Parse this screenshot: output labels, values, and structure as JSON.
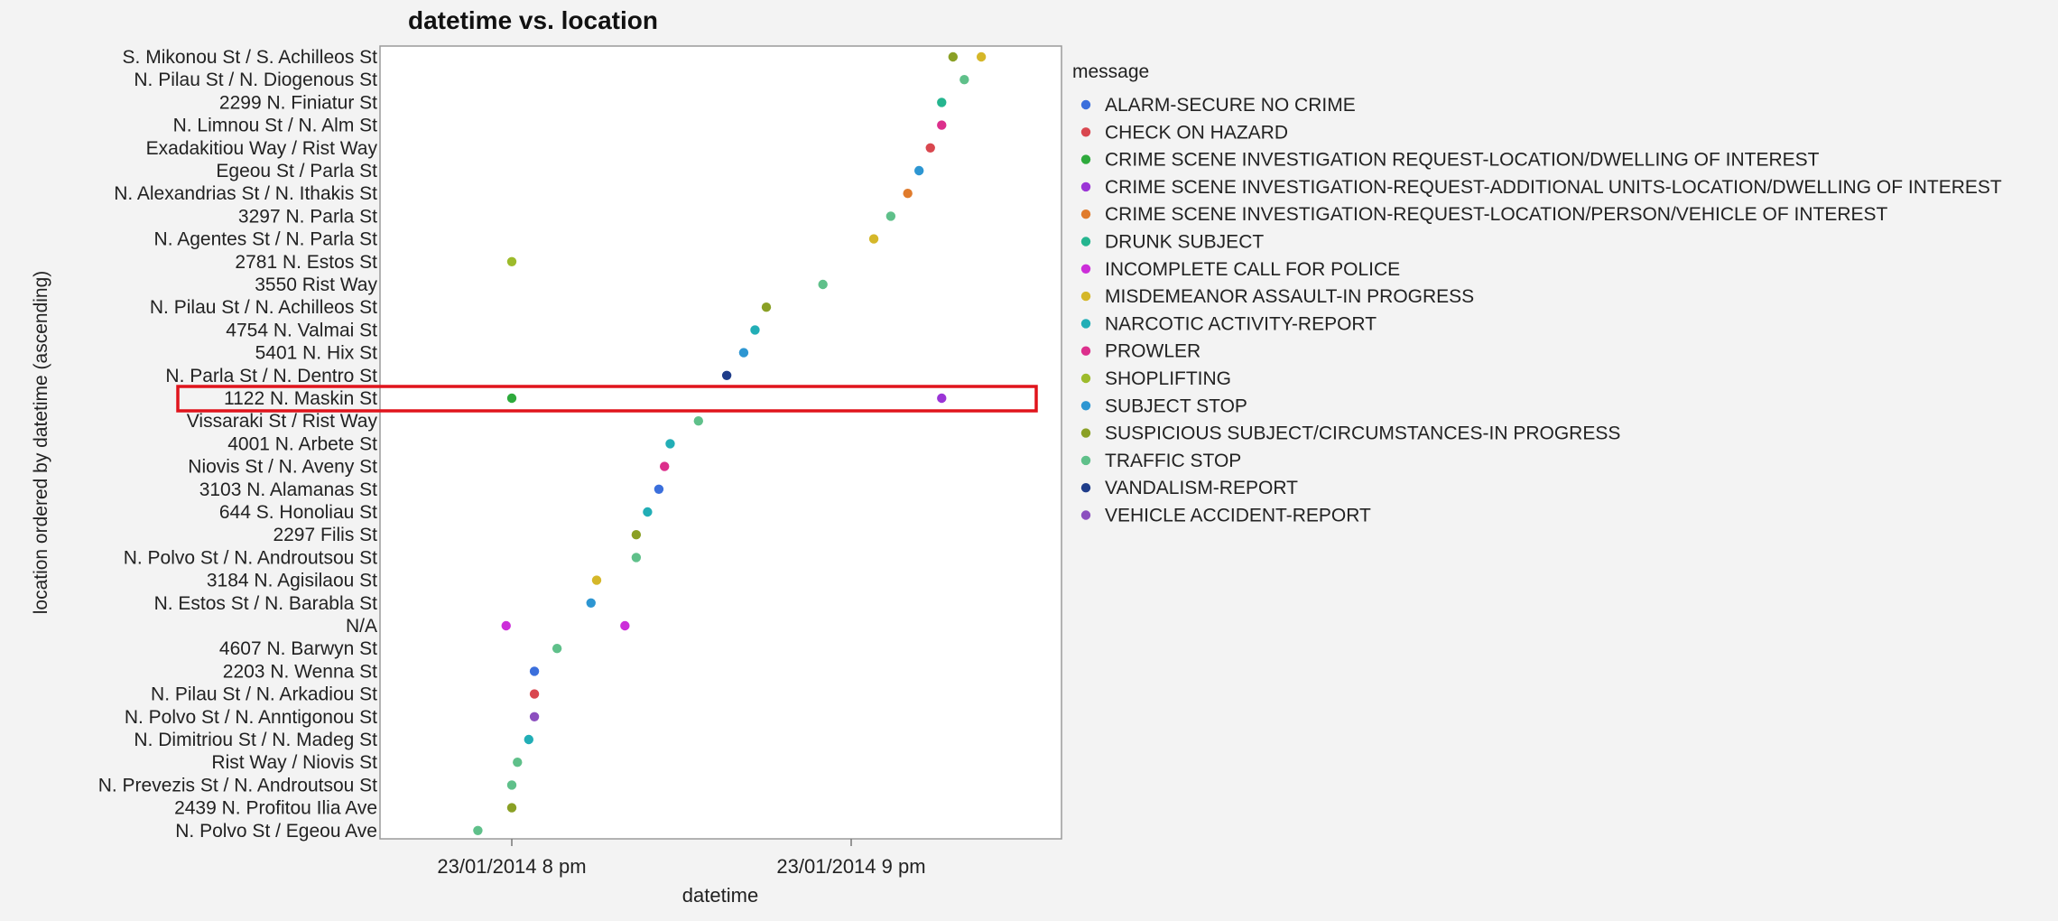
{
  "chart_data": {
    "type": "scatter",
    "title": "datetime vs. location",
    "xlabel": "datetime",
    "ylabel": "location ordered by datetime (ascending)",
    "x_unit": "minutes after 23/01/2014 8 pm",
    "x_ticks": [
      {
        "value": 0,
        "label": "23/01/2014 8 pm"
      },
      {
        "value": 60,
        "label": "23/01/2014 9 pm"
      }
    ],
    "xlim": [
      -20,
      86
    ],
    "grid": false,
    "legend_title": "message",
    "legend_position": "right",
    "categories": [
      "S. Mikonou St / S. Achilleos St",
      "N. Pilau St / N. Diogenous St",
      "2299 N. Finiatur St",
      "N. Limnou St / N. Alm St",
      "Exadakitiou Way / Rist Way",
      "Egeou St / Parla St",
      "N. Alexandrias St / N. Ithakis St",
      "3297 N. Parla St",
      "N. Agentes St / N. Parla St",
      "2781 N. Estos St",
      "3550 Rist Way",
      "N. Pilau St / N. Achilleos St",
      "4754 N. Valmai St",
      "5401 N. Hix St",
      "N. Parla St / N. Dentro St",
      "1122 N. Maskin St",
      "Vissaraki St / Rist Way",
      "4001 N. Arbete St",
      "Niovis St / N. Aveny St",
      "3103 N. Alamanas St",
      "644 S. Honoliau St",
      "2297 Filis St",
      "N. Polvo St / N. Androutsou St",
      "3184 N. Agisilaou St",
      "N. Estos St / N. Barabla St",
      "N/A",
      "4607 N. Barwyn St",
      "2203 N. Wenna St",
      "N. Pilau St / N. Arkadiou St",
      "N. Polvo St / N. Anntigonou St",
      "N. Dimitriou St / N. Madeg St",
      "Rist Way / Niovis St",
      "N. Prevezis St / N. Androutsou St",
      "2439 N. Profitou Ilia Ave",
      "N. Polvo St / Egeou Ave"
    ],
    "series": [
      {
        "name": "ALARM-SECURE NO CRIME",
        "color": "#3b6fdc",
        "points": [
          {
            "y": "3103 N. Alamanas St",
            "x": 26
          },
          {
            "y": "2203 N. Wenna St",
            "x": 4
          }
        ]
      },
      {
        "name": "CHECK ON HAZARD",
        "color": "#d9474f",
        "points": [
          {
            "y": "Exadakitiou Way / Rist Way",
            "x": 74
          },
          {
            "y": "N. Pilau St / N. Arkadiou St",
            "x": 4
          }
        ]
      },
      {
        "name": "CRIME SCENE INVESTIGATION REQUEST-LOCATION/DWELLING OF INTEREST",
        "color": "#2eaa3c",
        "points": [
          {
            "y": "1122 N. Maskin St",
            "x": 0
          }
        ]
      },
      {
        "name": "CRIME SCENE INVESTIGATION-REQUEST-ADDITIONAL UNITS-LOCATION/DWELLING OF INTEREST",
        "color": "#9b35d6",
        "points": [
          {
            "y": "1122 N. Maskin St",
            "x": 76
          }
        ]
      },
      {
        "name": "CRIME SCENE INVESTIGATION-REQUEST-LOCATION/PERSON/VEHICLE OF INTEREST",
        "color": "#e07b2c",
        "points": [
          {
            "y": "N. Alexandrias St / N. Ithakis St",
            "x": 70
          }
        ]
      },
      {
        "name": "DRUNK SUBJECT",
        "color": "#25b58f",
        "points": [
          {
            "y": "2299 N. Finiatur St",
            "x": 76
          }
        ]
      },
      {
        "name": "INCOMPLETE CALL FOR POLICE",
        "color": "#cc2ed9",
        "points": [
          {
            "y": "N/A",
            "x": -1
          },
          {
            "y": "N/A",
            "x": 20
          }
        ]
      },
      {
        "name": "MISDEMEANOR ASSAULT-IN PROGRESS",
        "color": "#d5b729",
        "points": [
          {
            "y": "S. Mikonou St / S. Achilleos St",
            "x": 83
          },
          {
            "y": "N. Agentes St / N. Parla St",
            "x": 64
          },
          {
            "y": "3184 N. Agisilaou St",
            "x": 15
          }
        ]
      },
      {
        "name": "NARCOTIC ACTIVITY-REPORT",
        "color": "#22aeb6",
        "points": [
          {
            "y": "4754 N. Valmai St",
            "x": 43
          },
          {
            "y": "4001 N. Arbete St",
            "x": 28
          },
          {
            "y": "644 S. Honoliau St",
            "x": 24
          },
          {
            "y": "N. Dimitriou St / N. Madeg St",
            "x": 3
          }
        ]
      },
      {
        "name": "PROWLER",
        "color": "#dc2f8c",
        "points": [
          {
            "y": "N. Limnou St / N. Alm St",
            "x": 76
          },
          {
            "y": "Niovis St / N. Aveny St",
            "x": 27
          }
        ]
      },
      {
        "name": "SHOPLIFTING",
        "color": "#9dbb2b",
        "points": [
          {
            "y": "2781 N. Estos St",
            "x": 0
          }
        ]
      },
      {
        "name": "SUBJECT STOP",
        "color": "#2d96d2",
        "points": [
          {
            "y": "Egeou St / Parla St",
            "x": 72
          },
          {
            "y": "5401 N. Hix St",
            "x": 41
          },
          {
            "y": "N. Estos St / N. Barabla St",
            "x": 14
          }
        ]
      },
      {
        "name": "SUSPICIOUS SUBJECT/CIRCUMSTANCES-IN PROGRESS",
        "color": "#8aa025",
        "points": [
          {
            "y": "S. Mikonou St / S. Achilleos St",
            "x": 78
          },
          {
            "y": "N. Pilau St / N. Achilleos St",
            "x": 45
          },
          {
            "y": "2297 Filis St",
            "x": 22
          },
          {
            "y": "2439 N. Profitou Ilia Ave",
            "x": 0
          }
        ]
      },
      {
        "name": "TRAFFIC STOP",
        "color": "#5fc08a",
        "points": [
          {
            "y": "N. Pilau St / N. Diogenous St",
            "x": 80
          },
          {
            "y": "3297 N. Parla St",
            "x": 67
          },
          {
            "y": "3550 Rist Way",
            "x": 55
          },
          {
            "y": "Vissaraki St / Rist Way",
            "x": 33
          },
          {
            "y": "N. Polvo St / N. Androutsou St",
            "x": 22
          },
          {
            "y": "4607 N. Barwyn St",
            "x": 8
          },
          {
            "y": "Rist Way / Niovis St",
            "x": 1
          },
          {
            "y": "N. Prevezis St / N. Androutsou St",
            "x": 0
          },
          {
            "y": "N. Polvo St / Egeou Ave",
            "x": -6
          }
        ]
      },
      {
        "name": "VANDALISM-REPORT",
        "color": "#1f3d8a",
        "points": [
          {
            "y": "N. Parla St / N. Dentro St",
            "x": 38
          }
        ]
      },
      {
        "name": "VEHICLE ACCIDENT-REPORT",
        "color": "#8c4fbf",
        "points": [
          {
            "y": "N. Polvo St / N. Anntigonou St",
            "x": 4
          }
        ]
      }
    ],
    "highlight": {
      "category": "1122 N. Maskin St",
      "color": "#e0141c"
    }
  }
}
